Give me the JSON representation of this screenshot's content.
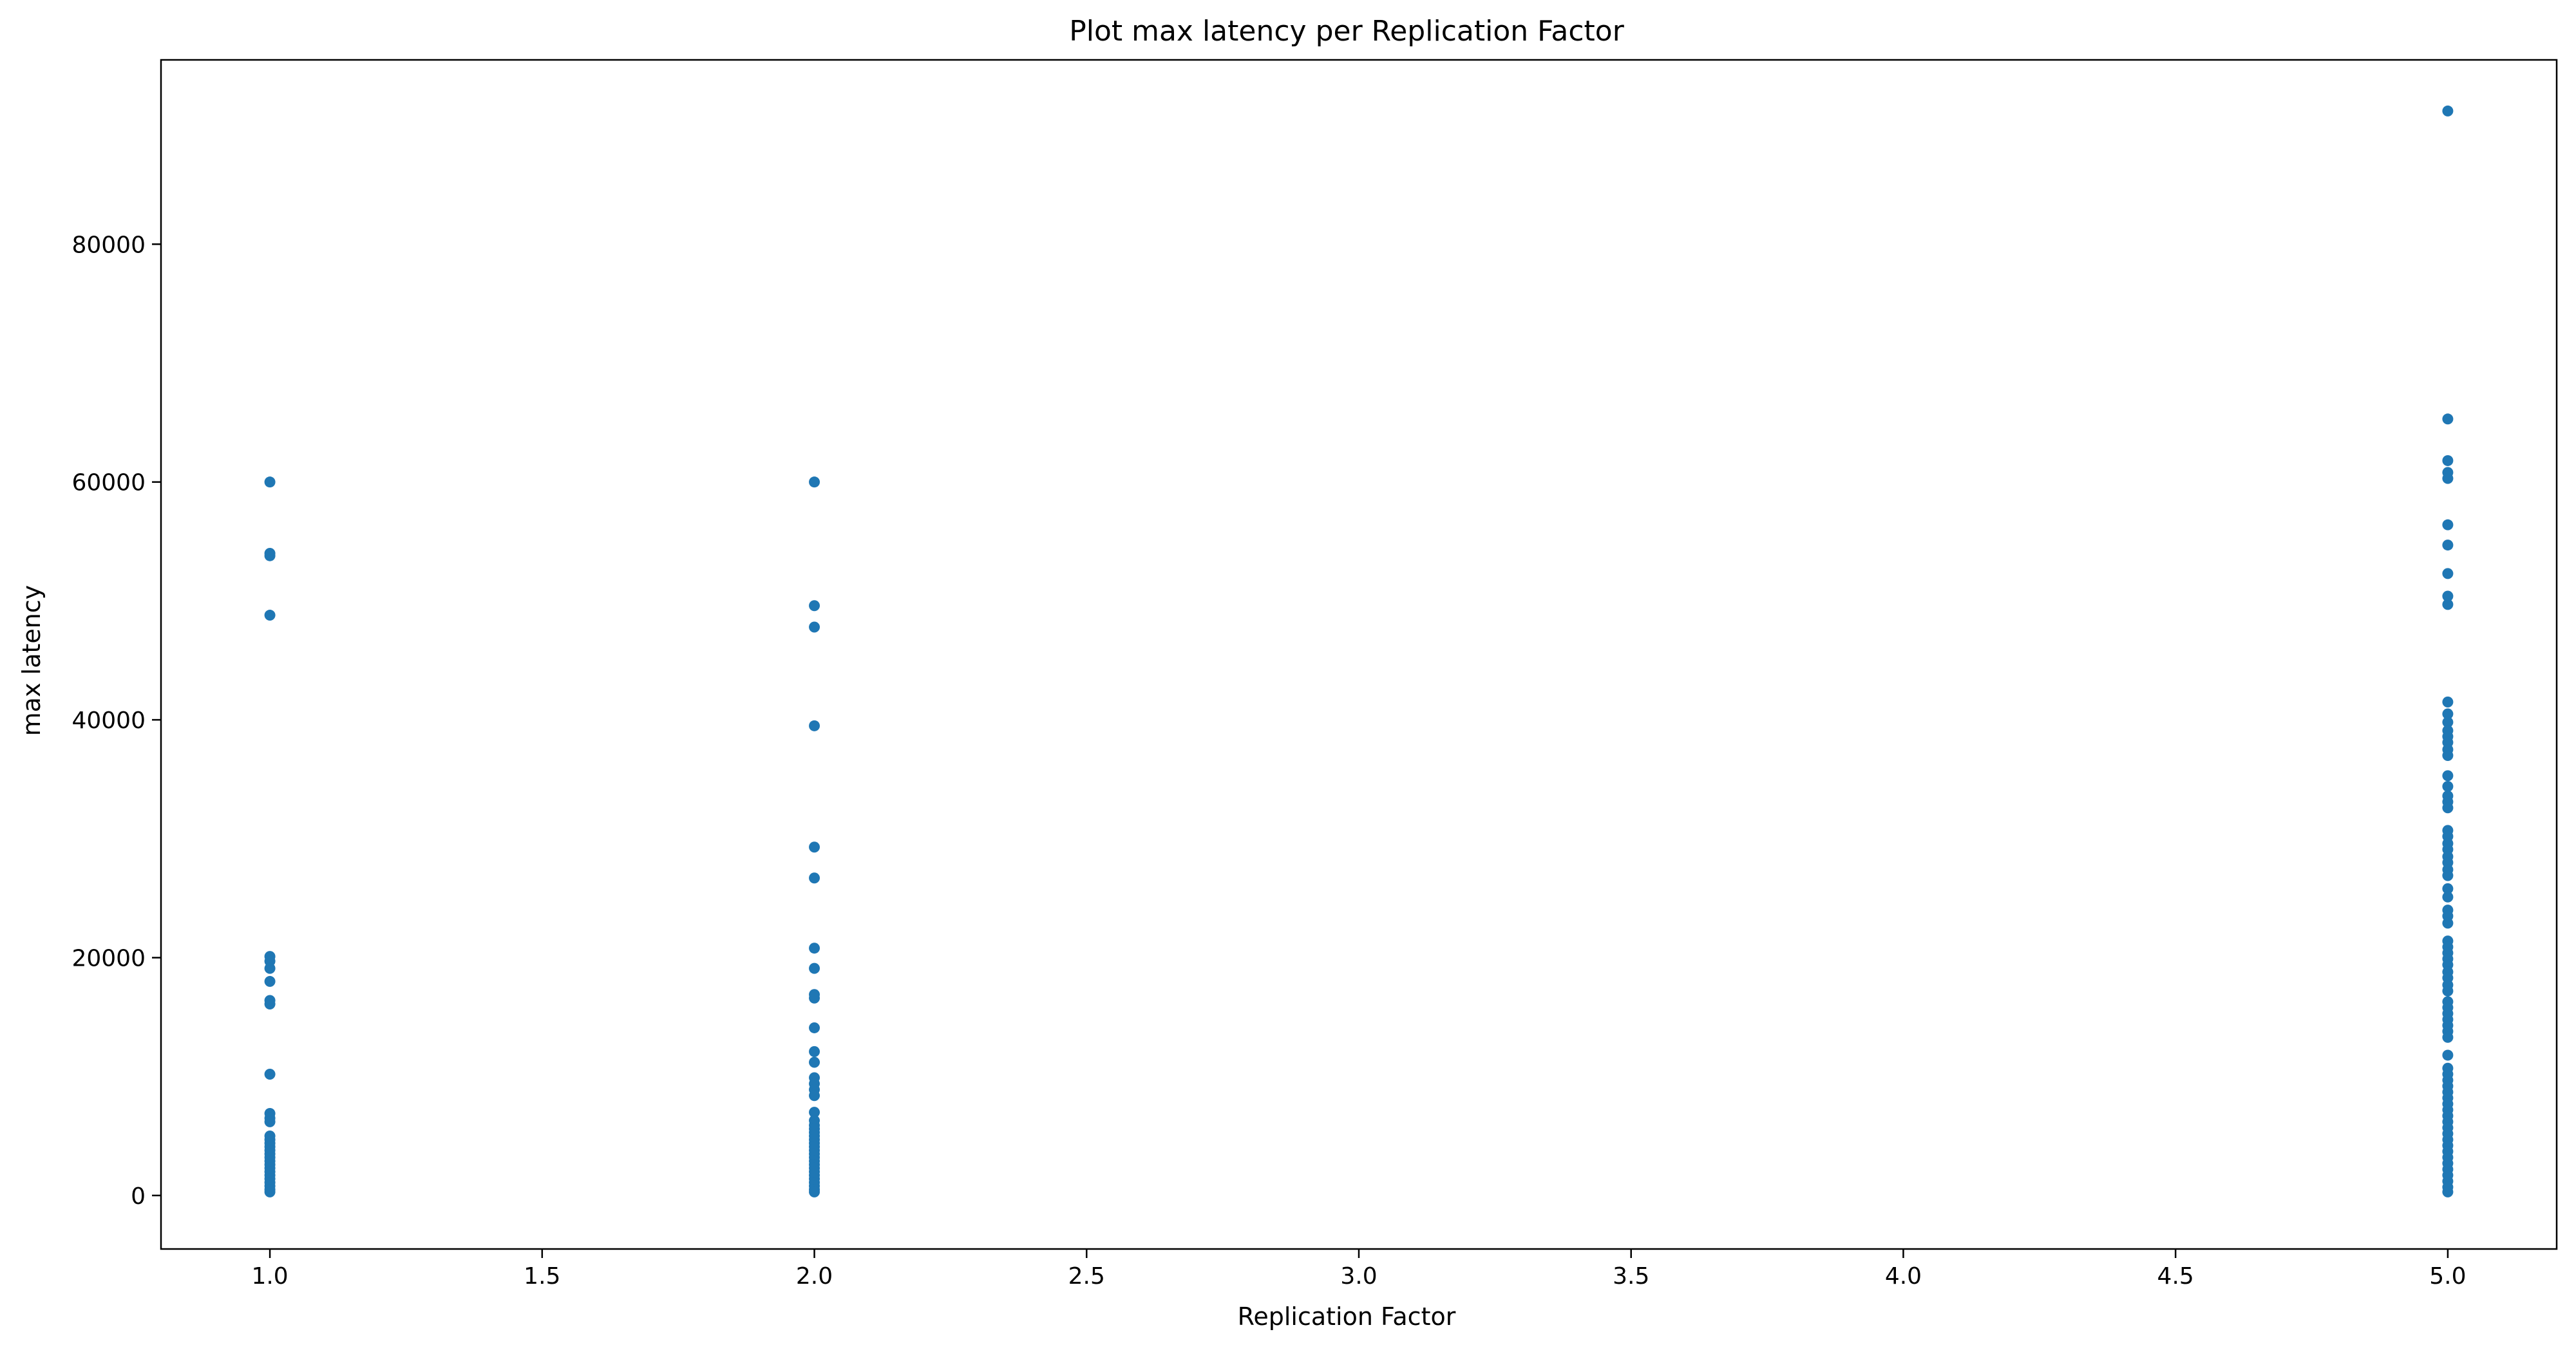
{
  "chart_data": {
    "type": "scatter",
    "title": "Plot max latency per Replication Factor",
    "xlabel": "Replication Factor",
    "ylabel": "max latency",
    "xlim": [
      0.8,
      5.2
    ],
    "ylim": [
      -4500,
      95500
    ],
    "xticks": [
      1.0,
      1.5,
      2.0,
      2.5,
      3.0,
      3.5,
      4.0,
      4.5,
      5.0
    ],
    "xtick_labels": [
      "1.0",
      "1.5",
      "2.0",
      "2.5",
      "3.0",
      "3.5",
      "4.0",
      "4.5",
      "5.0"
    ],
    "yticks": [
      0,
      20000,
      40000,
      60000,
      80000
    ],
    "ytick_labels": [
      "0",
      "20000",
      "40000",
      "60000",
      "80000"
    ],
    "grid": false,
    "point_color": "#1f77b4",
    "series": [
      {
        "x": 1.0,
        "y": [
          60000,
          54000,
          53800,
          48800,
          20100,
          19700,
          19100,
          18000,
          16400,
          16100,
          10200,
          6900,
          6500,
          6200,
          5000,
          4700,
          4400,
          4100,
          3800,
          3500,
          3200,
          2900,
          2600,
          2300,
          2000,
          1700,
          1400,
          1100,
          800,
          500,
          300
        ]
      },
      {
        "x": 2.0,
        "y": [
          60000,
          49600,
          47800,
          39500,
          29300,
          26700,
          20800,
          19100,
          16900,
          16600,
          14100,
          12100,
          11200,
          9900,
          9400,
          8900,
          8400,
          7000,
          6300,
          5900,
          5600,
          5300,
          5000,
          4700,
          4400,
          4100,
          3800,
          3500,
          3200,
          2900,
          2600,
          2300,
          2000,
          1700,
          1400,
          1100,
          800,
          500,
          300
        ]
      },
      {
        "x": 5.0,
        "y": [
          91200,
          65300,
          61800,
          60800,
          60300,
          56400,
          54700,
          52300,
          50400,
          49700,
          41500,
          40500,
          39800,
          39100,
          38600,
          38100,
          37500,
          37000,
          35300,
          34400,
          33600,
          33100,
          32600,
          30700,
          30200,
          29600,
          29100,
          28500,
          28000,
          27400,
          26900,
          25800,
          25100,
          24000,
          23500,
          22900,
          21400,
          20900,
          20400,
          19900,
          19400,
          18800,
          18300,
          17700,
          17200,
          16300,
          15800,
          15300,
          14800,
          14300,
          13800,
          13300,
          11800,
          10700,
          10200,
          9700,
          9200,
          8700,
          8200,
          7700,
          7200,
          6700,
          6200,
          5700,
          5200,
          4700,
          4200,
          3700,
          3200,
          2700,
          2200,
          1700,
          1200,
          700,
          300
        ]
      }
    ]
  }
}
